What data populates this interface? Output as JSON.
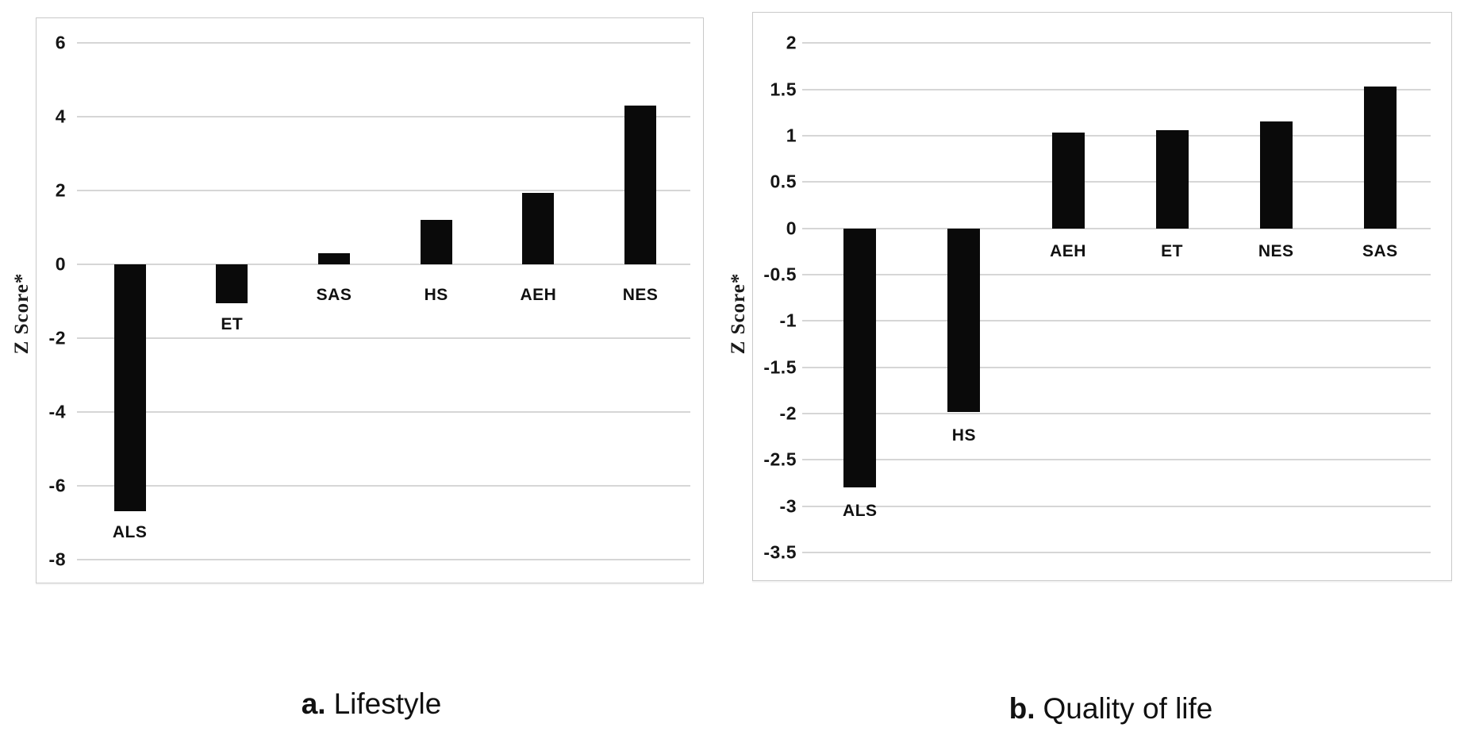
{
  "figure": {
    "ylabel": "Z Score*"
  },
  "captions": [
    {
      "prefix": "a.",
      "text": "Lifestyle"
    },
    {
      "prefix": "b.",
      "text": "Quality of life"
    }
  ],
  "chart_data": [
    {
      "type": "bar",
      "panel": "a",
      "title": "a. Lifestyle",
      "xlabel": "",
      "ylabel": "Z Score*",
      "categories": [
        "ALS",
        "ET",
        "SAS",
        "HS",
        "AEH",
        "NES"
      ],
      "values": [
        -6.7,
        -1.05,
        0.3,
        1.2,
        1.93,
        4.3
      ],
      "ytick_labels": [
        "6",
        "4",
        "2",
        "0",
        "-2",
        "-4",
        "-6",
        "-8"
      ],
      "ytick_values": [
        6,
        4,
        2,
        0,
        -2,
        -4,
        -6,
        -8
      ],
      "ylim": [
        -8.7,
        6.7
      ],
      "grid": "horizontal",
      "bar_color": "#0a0a0a",
      "legend": "none"
    },
    {
      "type": "bar",
      "panel": "b",
      "title": "b. Quality of life",
      "xlabel": "",
      "ylabel": "Z Score*",
      "categories": [
        "ALS",
        "HS",
        "AEH",
        "ET",
        "NES",
        "SAS"
      ],
      "values": [
        -2.8,
        -1.98,
        1.03,
        1.06,
        1.15,
        1.53
      ],
      "ytick_labels": [
        "2",
        "1.5",
        "1",
        "0.5",
        "0",
        "-0.5",
        "-1",
        "-1.5",
        "-2",
        "-2.5",
        "-3",
        "-3.5"
      ],
      "ytick_values": [
        2,
        1.5,
        1,
        0.5,
        0,
        -0.5,
        -1,
        -1.5,
        -2,
        -2.5,
        -3,
        -3.5
      ],
      "ylim": [
        -3.85,
        2.35
      ],
      "grid": "horizontal",
      "bar_color": "#0a0a0a",
      "legend": "none"
    }
  ]
}
